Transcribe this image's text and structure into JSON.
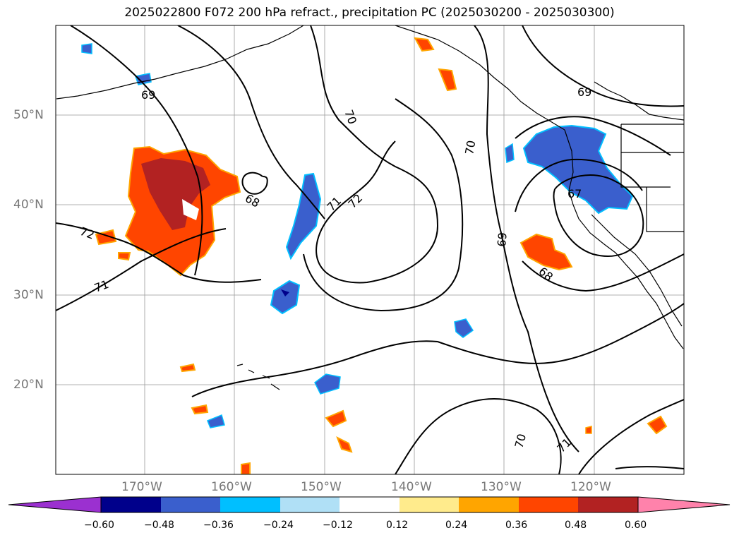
{
  "title": "2025022800 F072 200 hPa refract., precipitation PC (2025030200 - 2025030300)",
  "lat_labels": [
    "50°N",
    "40°N",
    "30°N",
    "20°N"
  ],
  "lon_labels": [
    "170°W",
    "160°W",
    "150°W",
    "140°W",
    "130°W",
    "120°W"
  ],
  "contour_labels": [
    "69",
    "70",
    "70",
    "69",
    "68",
    "71",
    "72",
    "72",
    "71",
    "67",
    "68",
    "69",
    "70",
    "71"
  ],
  "colorbar": {
    "ticks": [
      "−0.60",
      "−0.48",
      "−0.36",
      "−0.24",
      "−0.12",
      "0.12",
      "0.24",
      "0.36",
      "0.48",
      "0.60"
    ],
    "colors": [
      "#9b30d0",
      "#00008b",
      "#3a5fcd",
      "#00bfff",
      "#b0e0f6",
      "#ffffff",
      "#ffeb8c",
      "#ffa500",
      "#ff4500",
      "#b22222",
      "#ff82ab"
    ]
  }
}
